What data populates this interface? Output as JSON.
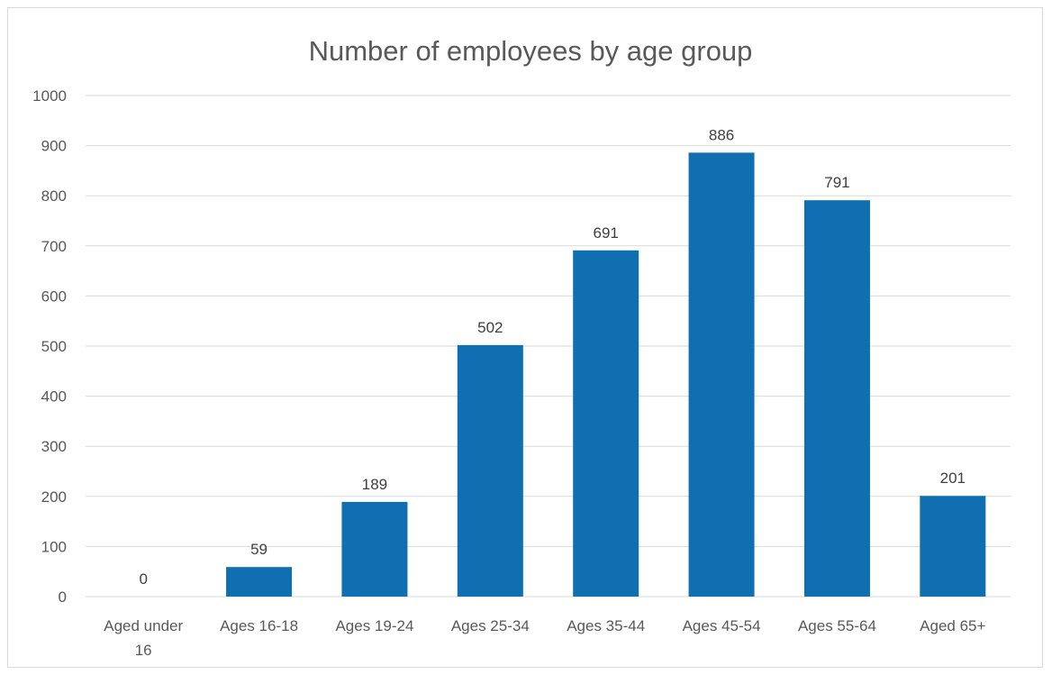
{
  "chart_data": {
    "type": "bar",
    "title": "Number of employees by age group",
    "xlabel": "",
    "ylabel": "",
    "categories": [
      [
        "Aged under",
        "16"
      ],
      [
        "Ages 16-18"
      ],
      [
        "Ages 19-24"
      ],
      [
        "Ages 25-34"
      ],
      [
        "Ages 35-44"
      ],
      [
        "Ages 45-54"
      ],
      [
        "Ages 55-64"
      ],
      [
        "Aged 65+"
      ]
    ],
    "values": [
      0,
      59,
      189,
      502,
      691,
      886,
      791,
      201
    ],
    "ylim": [
      0,
      1000
    ],
    "yticks": [
      0,
      100,
      200,
      300,
      400,
      500,
      600,
      700,
      800,
      900,
      1000
    ],
    "data_labels": true,
    "grid": true,
    "legend": "none",
    "colors": {
      "bar": "#0f6fb0",
      "grid": "#d9d9d9",
      "text": "#595959"
    }
  }
}
